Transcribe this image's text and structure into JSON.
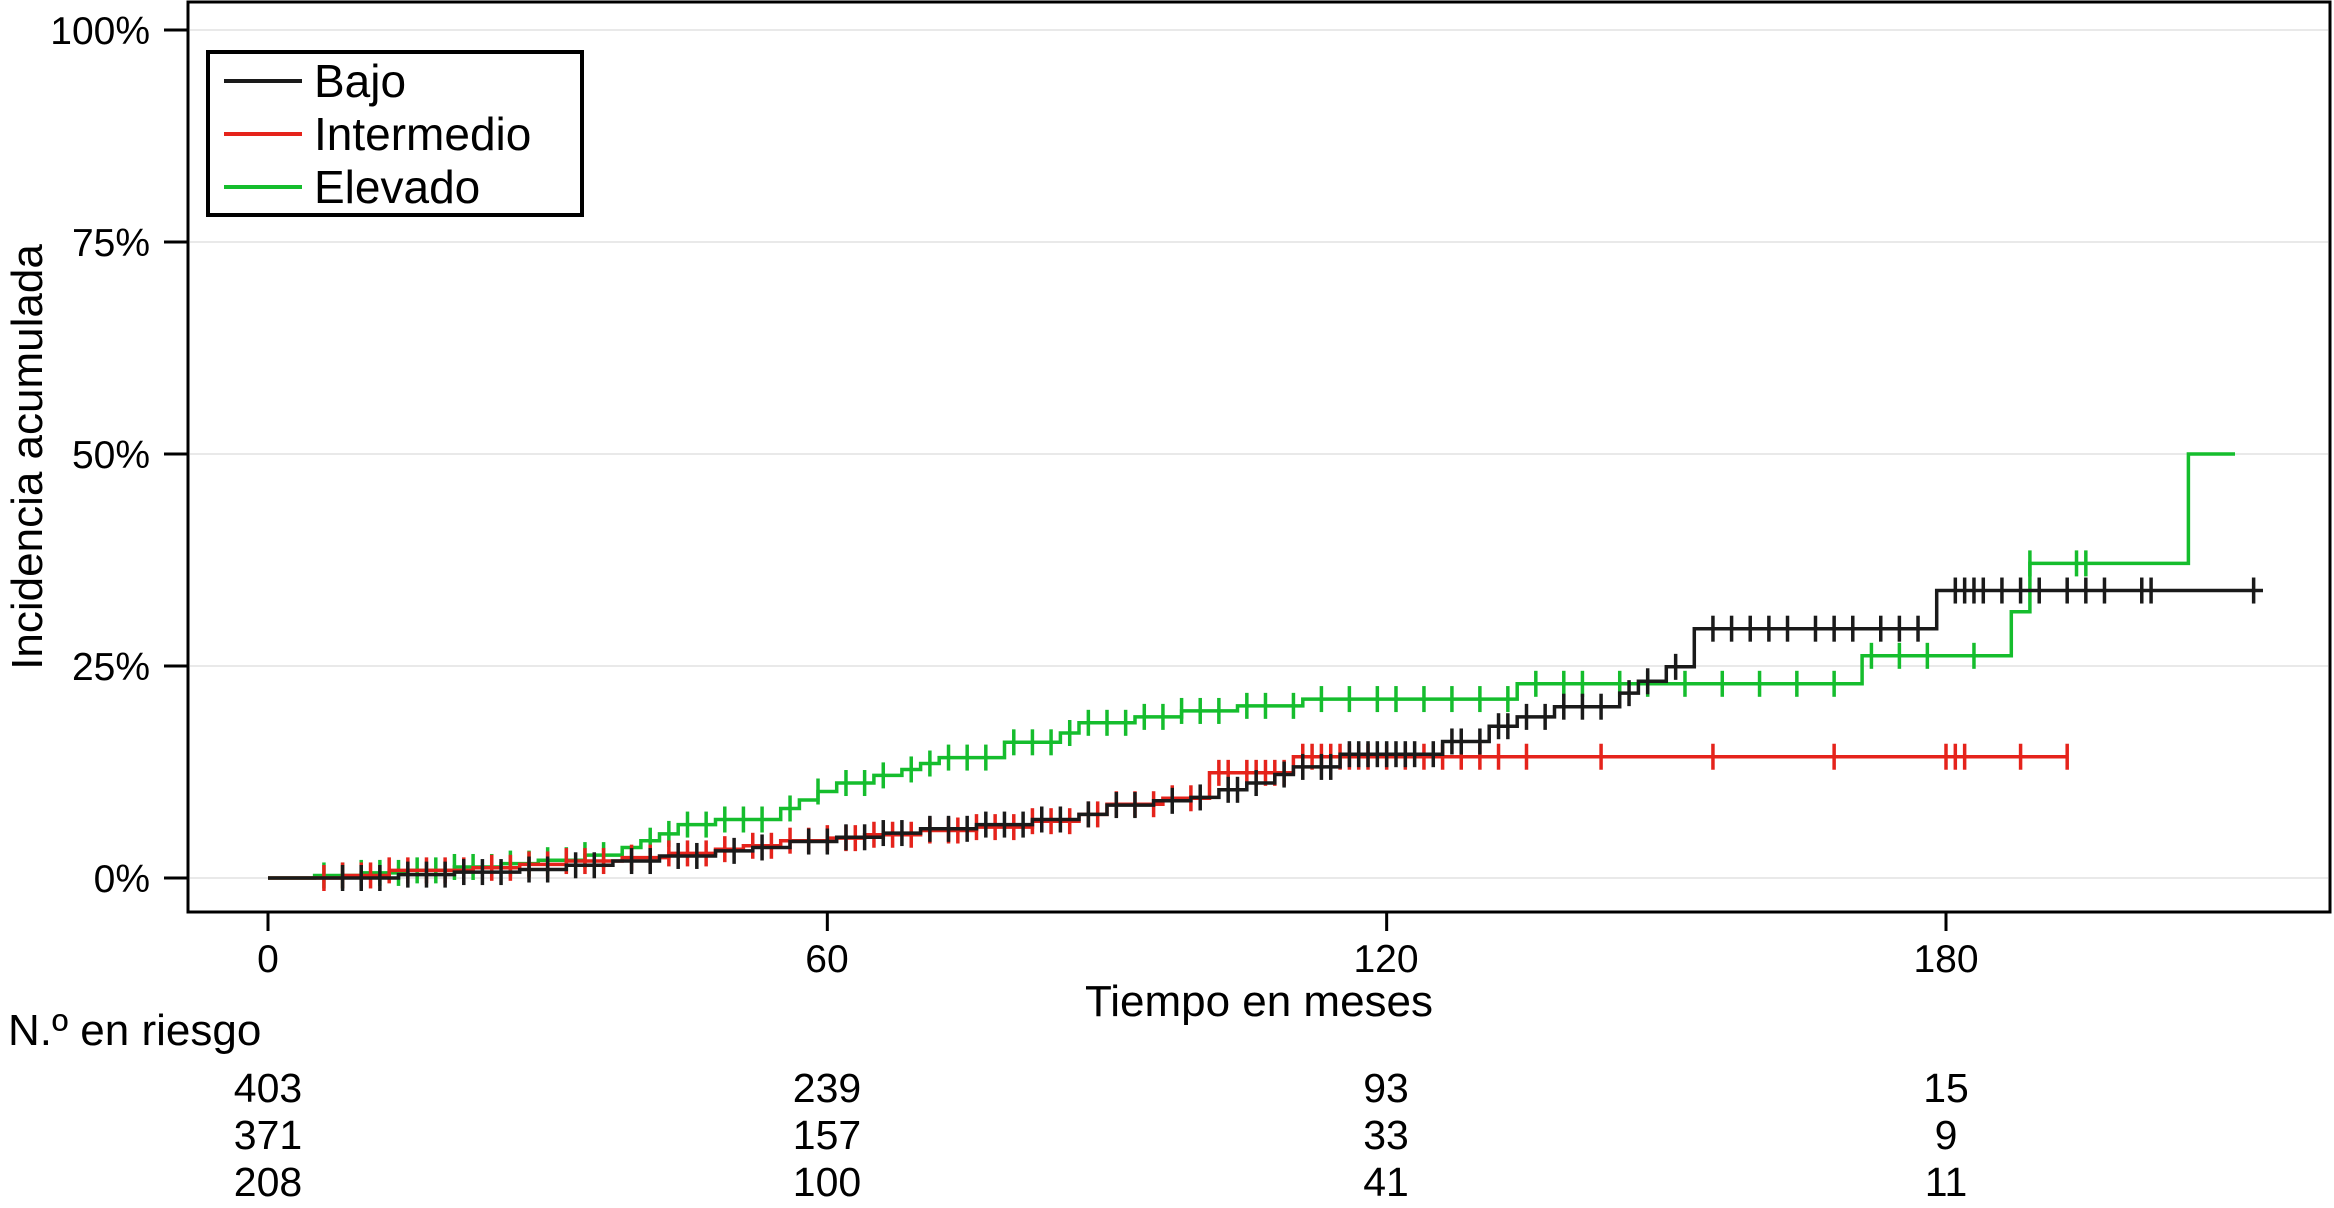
{
  "chart_data": {
    "type": "line",
    "subtype": "kaplan-meier-cumulative-incidence-step-curves",
    "title": "",
    "xlabel": "Tiempo en meses",
    "ylabel": "Incidencia acumulada",
    "x_ticks": [
      {
        "label": "0",
        "t": 0
      },
      {
        "label": "60",
        "t": 60
      },
      {
        "label": "120",
        "t": 120
      },
      {
        "label": "180",
        "t": 180
      }
    ],
    "y_ticks": [
      {
        "label": "0%",
        "value": 0
      },
      {
        "label": "25%",
        "value": 25
      },
      {
        "label": "50%",
        "value": 50
      },
      {
        "label": "75%",
        "value": 75
      },
      {
        "label": "100%",
        "value": 100
      }
    ],
    "xlim": [
      -10,
      221
    ],
    "ylim": [
      0,
      100
    ],
    "grid": "horizontal-only",
    "legend": {
      "position": "top-left",
      "entries": [
        {
          "label": "Bajo",
          "color": "#1a1a1a"
        },
        {
          "label": "Intermedio",
          "color": "#e5231b"
        },
        {
          "label": "Elevado",
          "color": "#15bd2d"
        }
      ]
    },
    "series": [
      {
        "name": "Bajo",
        "color": "#1a1a1a",
        "steps": [
          [
            0,
            0
          ],
          [
            14,
            0.4
          ],
          [
            20,
            0.7
          ],
          [
            27,
            1.0
          ],
          [
            32,
            1.5
          ],
          [
            37,
            2.0
          ],
          [
            42,
            2.6
          ],
          [
            48,
            3.2
          ],
          [
            52,
            3.6
          ],
          [
            56,
            4.3
          ],
          [
            61,
            4.8
          ],
          [
            66,
            5.3
          ],
          [
            70,
            5.8
          ],
          [
            76,
            6.3
          ],
          [
            82,
            6.9
          ],
          [
            87,
            7.5
          ],
          [
            90,
            8.6
          ],
          [
            95,
            9.1
          ],
          [
            99,
            9.5
          ],
          [
            102,
            10.4
          ],
          [
            105,
            11.2
          ],
          [
            108,
            12.2
          ],
          [
            110,
            13.1
          ],
          [
            115,
            14.6
          ],
          [
            126,
            16.1
          ],
          [
            131,
            17.9
          ],
          [
            134,
            19.0
          ],
          [
            138,
            20.2
          ],
          [
            145,
            21.8
          ],
          [
            147,
            23.2
          ],
          [
            150,
            24.9
          ],
          [
            153,
            29.4
          ],
          [
            179,
            33.9
          ]
        ],
        "end": 214,
        "censors": [
          8,
          10,
          12,
          15,
          17,
          19,
          21,
          23,
          25,
          28,
          30,
          33,
          35,
          39,
          41,
          44,
          46,
          50,
          53,
          58,
          60,
          62,
          64,
          66,
          68,
          71,
          73,
          75,
          77,
          79,
          81,
          83,
          85,
          88,
          91,
          93,
          97,
          100,
          103,
          104,
          106,
          109,
          111,
          113,
          114,
          116,
          117,
          118,
          119,
          120,
          121,
          122,
          123,
          125,
          127,
          128,
          130,
          132,
          133,
          135,
          137,
          139,
          141,
          143,
          146,
          148,
          151,
          155,
          157,
          159,
          161,
          163,
          166,
          168,
          170,
          173,
          175,
          177,
          181,
          182,
          183,
          184,
          186,
          188,
          190,
          193,
          195,
          197,
          201,
          202,
          213
        ]
      },
      {
        "name": "Intermedio",
        "color": "#e5231b",
        "steps": [
          [
            0,
            0
          ],
          [
            8,
            0.3
          ],
          [
            13,
            0.9
          ],
          [
            22,
            1.2
          ],
          [
            27,
            1.6
          ],
          [
            32,
            2.0
          ],
          [
            38,
            2.4
          ],
          [
            43,
            2.9
          ],
          [
            48,
            3.4
          ],
          [
            51,
            3.8
          ],
          [
            55,
            4.4
          ],
          [
            60,
            4.7
          ],
          [
            64,
            5.1
          ],
          [
            70,
            5.6
          ],
          [
            76,
            6.0
          ],
          [
            82,
            6.7
          ],
          [
            87,
            7.5
          ],
          [
            90,
            8.7
          ],
          [
            96,
            9.4
          ],
          [
            101,
            12.4
          ],
          [
            110,
            14.3
          ]
        ],
        "end": 193,
        "censors": [
          6,
          8,
          10,
          11,
          13,
          15,
          17,
          19,
          21,
          24,
          26,
          28,
          30,
          32,
          34,
          36,
          39,
          41,
          43,
          45,
          47,
          49,
          52,
          54,
          56,
          58,
          60,
          62,
          63,
          65,
          67,
          69,
          71,
          73,
          74,
          76,
          78,
          80,
          82,
          84,
          86,
          88,
          89,
          91,
          93,
          95,
          97,
          99,
          102,
          103,
          105,
          106,
          107,
          108,
          109,
          111,
          112,
          113,
          114,
          115,
          116,
          117,
          118,
          120,
          122,
          124,
          126,
          128,
          130,
          132,
          135,
          143,
          155,
          168,
          180,
          181,
          182,
          188,
          193
        ]
      },
      {
        "name": "Elevado",
        "color": "#15bd2d",
        "steps": [
          [
            0,
            0
          ],
          [
            5,
            0.3
          ],
          [
            10,
            0.6
          ],
          [
            15,
            0.9
          ],
          [
            20,
            1.3
          ],
          [
            25,
            1.7
          ],
          [
            29,
            2.1
          ],
          [
            34,
            2.7
          ],
          [
            38,
            3.6
          ],
          [
            40,
            4.4
          ],
          [
            42,
            5.2
          ],
          [
            44,
            6.3
          ],
          [
            48,
            6.9
          ],
          [
            55,
            8.2
          ],
          [
            57,
            9.2
          ],
          [
            59,
            10.2
          ],
          [
            61,
            11.2
          ],
          [
            65,
            12.1
          ],
          [
            68,
            12.8
          ],
          [
            70,
            13.5
          ],
          [
            72,
            14.2
          ],
          [
            79,
            16.0
          ],
          [
            85,
            17.1
          ],
          [
            87,
            18.3
          ],
          [
            93,
            19.0
          ],
          [
            98,
            19.7
          ],
          [
            104,
            20.3
          ],
          [
            111,
            21.1
          ],
          [
            134,
            22.9
          ],
          [
            171,
            26.2
          ],
          [
            187,
            31.4
          ],
          [
            189,
            37.1
          ],
          [
            206,
            50.0
          ]
        ],
        "end": 211,
        "censors": [
          6,
          8,
          10,
          12,
          14,
          16,
          18,
          20,
          22,
          24,
          26,
          28,
          30,
          32,
          34,
          36,
          41,
          43,
          45,
          47,
          49,
          51,
          53,
          56,
          59,
          62,
          64,
          66,
          69,
          71,
          73,
          75,
          77,
          80,
          82,
          84,
          86,
          88,
          90,
          92,
          94,
          96,
          98,
          100,
          102,
          105,
          107,
          110,
          113,
          116,
          119,
          121,
          124,
          127,
          130,
          133,
          136,
          139,
          141,
          145,
          148,
          152,
          156,
          160,
          164,
          168,
          172,
          175,
          178,
          183,
          189,
          194,
          195
        ]
      }
    ],
    "risk_table": {
      "label": "N.º en riesgo",
      "times": [
        0,
        60,
        120,
        180
      ],
      "rows": [
        {
          "name": "Bajo",
          "color": "#000000",
          "values": [
            "403",
            "239",
            "93",
            "15"
          ]
        },
        {
          "name": "Intermedio",
          "color": "#e5231b",
          "values": [
            "371",
            "157",
            "33",
            "9"
          ]
        },
        {
          "name": "Elevado",
          "color": "#3cc468",
          "values": [
            "208",
            "100",
            "41",
            "11"
          ]
        }
      ]
    }
  }
}
